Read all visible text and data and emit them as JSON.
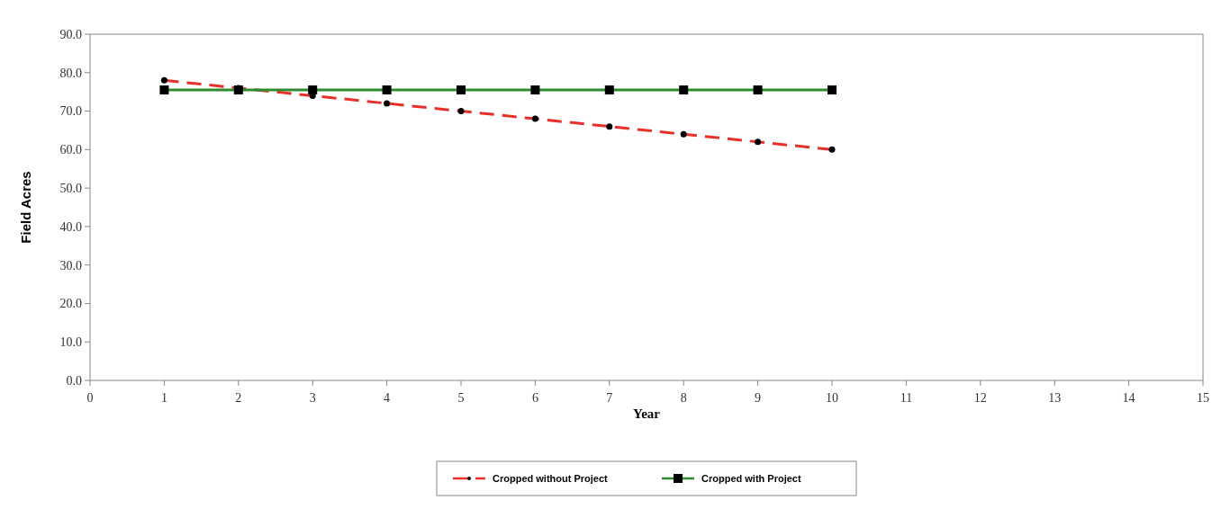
{
  "chart_data": {
    "type": "line",
    "xlabel": "Year",
    "ylabel": "Field Acres",
    "x": [
      1,
      2,
      3,
      4,
      5,
      6,
      7,
      8,
      9,
      10
    ],
    "series": [
      {
        "name": "Cropped without Project",
        "color": "#e8302a",
        "values": [
          78,
          76,
          74,
          72,
          70,
          68,
          66,
          64,
          62,
          60
        ],
        "line_style": "dashed",
        "marker": "circle"
      },
      {
        "name": "Cropped with Project",
        "color": "#2e8b2e",
        "values": [
          75.5,
          75.5,
          75.5,
          75.5,
          75.5,
          75.5,
          75.5,
          75.5,
          75.5,
          75.5
        ],
        "line_style": "solid",
        "marker": "square"
      }
    ],
    "xlim": [
      0,
      15
    ],
    "xticks": [
      0,
      1,
      2,
      3,
      4,
      5,
      6,
      7,
      8,
      9,
      10,
      11,
      12,
      13,
      14,
      15
    ],
    "ylim": [
      0,
      90
    ],
    "yticks": [
      {
        "value": 0,
        "label": "0.0"
      },
      {
        "value": 10,
        "label": "10.0"
      },
      {
        "value": 20,
        "label": "20.0"
      },
      {
        "value": 30,
        "label": "30.0"
      },
      {
        "value": 40,
        "label": "40.0"
      },
      {
        "value": 50,
        "label": "50.0"
      },
      {
        "value": 60,
        "label": "60.0"
      },
      {
        "value": 70,
        "label": "70.0"
      },
      {
        "value": 80,
        "label": "80.0"
      },
      {
        "value": 90,
        "label": "90.0"
      }
    ],
    "grid": false,
    "legend": "bottom"
  }
}
